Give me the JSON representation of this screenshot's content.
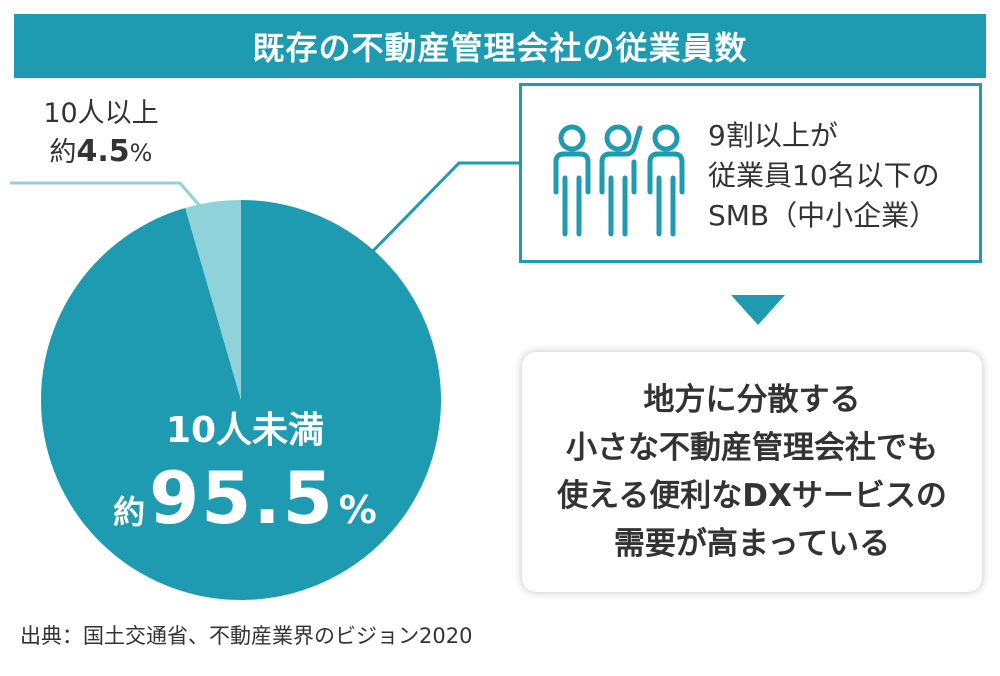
{
  "header": {
    "title": "既存の不動産管理会社の従業員数"
  },
  "chart_data": {
    "type": "pie",
    "title": "既存の不動産管理会社の従業員数",
    "slices": [
      {
        "label": "10人未満",
        "prefix": "約",
        "value": 95.5,
        "value_text": "95.5",
        "unit": "%",
        "color": "#1e9bb1"
      },
      {
        "label": "10人以上",
        "prefix": "約",
        "value": 4.5,
        "value_text": "4.5",
        "unit": "%",
        "color": "#8fd2da"
      }
    ],
    "legend": "none"
  },
  "callout": {
    "lines": [
      "9割以上が",
      "従業員10名以下の",
      "SMB（中小企業）"
    ],
    "icon": "people-icon",
    "border_color": "#1e9bb1"
  },
  "conclusion": {
    "lines": [
      "地方に分散する",
      "小さな不動産管理会社でも",
      "使える便利なDXサービスの",
      "需要が高まっている"
    ]
  },
  "source": "出典：国土交通省、不動産業界のビジョン2020",
  "colors": {
    "accent": "#1e9bb1",
    "light": "#8fd2da",
    "text": "#333333"
  }
}
